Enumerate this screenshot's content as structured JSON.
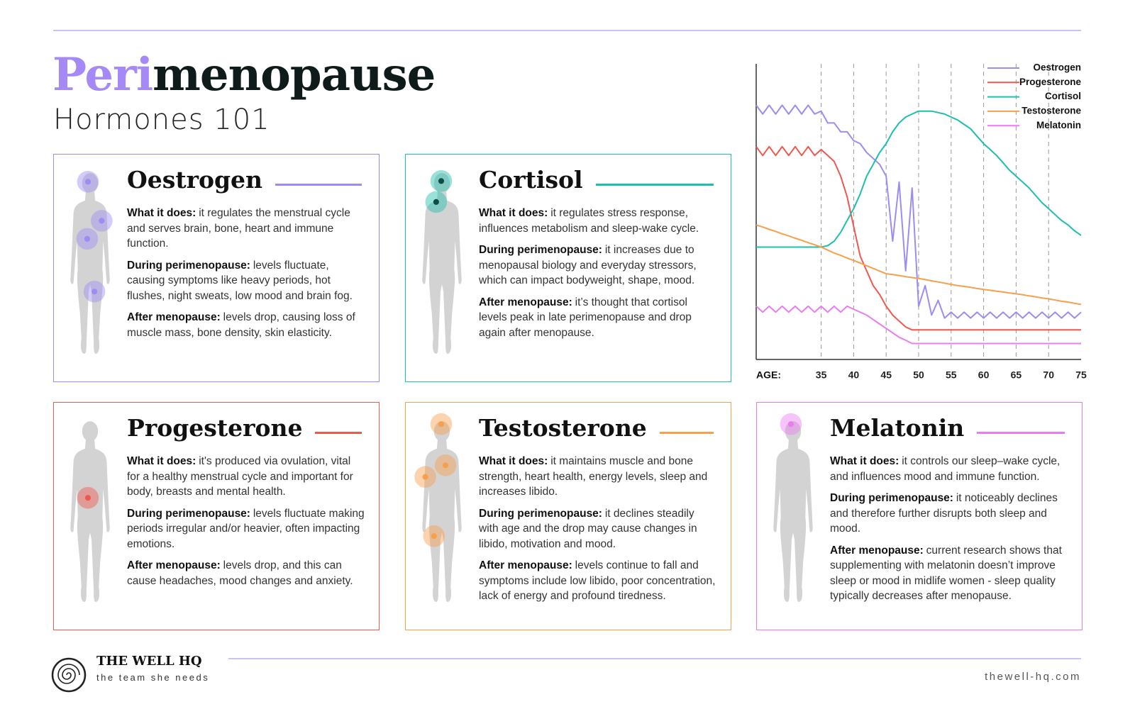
{
  "header": {
    "title_accent": "Peri",
    "title_rest": "menopause",
    "subtitle": "Hormones 101"
  },
  "cards": [
    {
      "title": "Oestrogen",
      "color": "#9d8cf2",
      "sections": [
        {
          "label": "What it does:",
          "text": "it regulates the menstrual cycle and serves brain, bone, heart and immune function."
        },
        {
          "label": "During perimenopause:",
          "text": "levels fluctuate, causing symptoms like heavy periods, hot flushes, night sweats, low mood and brain fog."
        },
        {
          "label": "After menopause:",
          "text": "levels drop, causing loss of muscle mass, bone density, skin elasticity."
        }
      ]
    },
    {
      "title": "Cortisol",
      "color": "#1dbfae",
      "sections": [
        {
          "label": "What it does:",
          "text": "it regulates stress response, influences metabolism and sleep-wake cycle."
        },
        {
          "label": "During perimenopause:",
          "text": "it increases due to menopausal biology and everyday stressors, which can impact bodyweight, shape, mood."
        },
        {
          "label": "After menopause:",
          "text": "it’s thought that cortisol levels peak in late perimenopause and drop again after menopause."
        }
      ]
    },
    {
      "title": "Progesterone",
      "color": "#f0574f",
      "sections": [
        {
          "label": "What it does:",
          "text": "it's produced via ovulation, vital for a healthy menstrual cycle and important for body, breasts and mental health."
        },
        {
          "label": "During perimenopause:",
          "text": "levels fluctuate making periods irregular and/or heavier, often impacting emotions."
        },
        {
          "label": "After menopause:",
          "text": "levels drop, and this can cause headaches, mood changes and anxiety."
        }
      ]
    },
    {
      "title": "Testosterone",
      "color": "#f6a04d",
      "sections": [
        {
          "label": "What it does:",
          "text": "it maintains muscle and bone strength, heart health, energy levels, sleep and increases libido."
        },
        {
          "label": "During perimenopause:",
          "text": "it declines steadily with age and the drop may cause changes in libido, motivation and mood."
        },
        {
          "label": "After menopause:",
          "text": "levels continue to fall and symptoms include low libido, poor concentration, lack of energy and profound tiredness."
        }
      ]
    },
    {
      "title": "Melatonin",
      "color": "#e87cf0",
      "sections": [
        {
          "label": "What it does:",
          "text": "it controls our sleep–wake cycle, and influences mood and immune function."
        },
        {
          "label": "During perimenopause:",
          "text": "it noticeably declines and therefore further disrupts both sleep and mood."
        },
        {
          "label": "After menopause:",
          "text": "current research shows that supplementing with melatonin doesn’t improve sleep or mood in midlife women - sleep quality typically decreases after menopause."
        }
      ]
    }
  ],
  "chart_data": {
    "type": "line",
    "xlabel": "AGE:",
    "x": [
      25,
      26,
      27,
      28,
      29,
      30,
      31,
      32,
      33,
      34,
      35,
      36,
      37,
      38,
      39,
      40,
      41,
      42,
      43,
      44,
      45,
      46,
      47,
      48,
      49,
      50,
      51,
      52,
      53,
      54,
      55,
      56,
      57,
      58,
      59,
      60,
      61,
      62,
      63,
      64,
      65,
      66,
      67,
      68,
      69,
      70,
      71,
      72,
      73,
      74,
      75
    ],
    "xlim": [
      25,
      75
    ],
    "xticks": [
      35,
      40,
      45,
      50,
      55,
      60,
      65,
      70,
      75
    ],
    "ylim": [
      0,
      100
    ],
    "grid": true,
    "legend": "upper right",
    "series": [
      {
        "name": "Oestrogen",
        "color": "#9d8cf2",
        "values": [
          86,
          83,
          86,
          83,
          86,
          83,
          86,
          83,
          86,
          83,
          84,
          80,
          80,
          77,
          77,
          74,
          73,
          70,
          68,
          66,
          62,
          40,
          60,
          30,
          58,
          18,
          25,
          15,
          20,
          14,
          16,
          14,
          16,
          14,
          16,
          14,
          16,
          14,
          16,
          14,
          16,
          14,
          16,
          14,
          16,
          14,
          16,
          14,
          16,
          14,
          16
        ]
      },
      {
        "name": "Progesterone",
        "color": "#f0574f",
        "values": [
          72,
          69,
          72,
          69,
          72,
          69,
          72,
          69,
          72,
          69,
          71,
          69,
          67,
          62,
          55,
          45,
          35,
          30,
          25,
          22,
          18,
          15,
          13,
          11,
          10,
          10,
          10,
          10,
          10,
          10,
          10,
          10,
          10,
          10,
          10,
          10,
          10,
          10,
          10,
          10,
          10,
          10,
          10,
          10,
          10,
          10,
          10,
          10,
          10,
          10,
          10
        ]
      },
      {
        "name": "Cortisol",
        "color": "#1dbfae",
        "values": [
          38,
          38,
          38,
          38,
          38,
          38,
          38,
          38,
          38,
          38,
          38,
          38.5,
          40,
          43,
          47,
          51,
          56,
          62,
          66,
          70,
          73,
          77,
          80,
          82,
          83,
          84,
          84,
          84,
          83.5,
          83,
          82,
          81,
          79.5,
          78,
          75.5,
          73,
          71,
          69,
          66.5,
          64,
          62,
          60,
          58,
          55.5,
          53,
          51,
          49,
          47,
          45.5,
          43.5,
          42
        ]
      },
      {
        "name": "Testosterone",
        "color": "#f6a04d",
        "values": [
          45.5,
          44.8,
          44,
          43.3,
          42.5,
          41.8,
          41,
          40.3,
          39.5,
          38.8,
          38,
          37,
          36,
          35.2,
          34.3,
          33.5,
          32.6,
          31.7,
          30.8,
          29.9,
          29,
          28.7,
          28.4,
          28,
          27.7,
          27.4,
          27,
          26.6,
          26.2,
          25.8,
          25.4,
          25,
          24.7,
          24.4,
          24,
          23.7,
          23.4,
          23.1,
          22.8,
          22.5,
          22.2,
          21.9,
          21.5,
          21.2,
          20.8,
          20.5,
          20.1,
          19.7,
          19.4,
          19,
          18.6
        ]
      },
      {
        "name": "Melatonin",
        "color": "#e87cf0",
        "values": [
          18,
          16,
          18,
          16,
          18,
          16,
          18,
          16,
          18,
          16,
          18,
          16,
          18,
          16,
          18,
          17,
          16,
          15,
          13.5,
          12,
          10.5,
          9,
          7.5,
          6.5,
          5.4,
          5.4,
          5.4,
          5.4,
          5.4,
          5.4,
          5.4,
          5.4,
          5.4,
          5.4,
          5.4,
          5.4,
          5.4,
          5.4,
          5.4,
          5.4,
          5.4,
          5.4,
          5.4,
          5.4,
          5.4,
          5.4,
          5.4,
          5.4,
          5.4,
          5.4,
          5.4
        ]
      }
    ]
  },
  "footer": {
    "brand": "THE WELL HQ",
    "tagline": "the team she needs",
    "url": "thewell-hq.com"
  }
}
